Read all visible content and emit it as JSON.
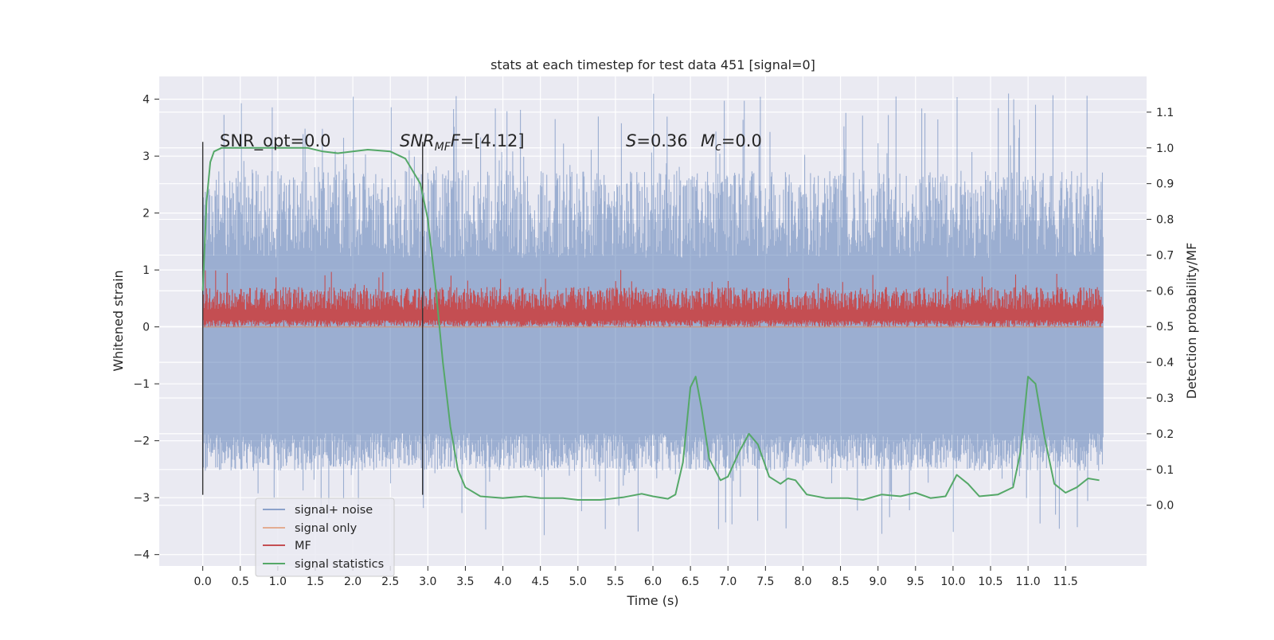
{
  "chart_data": {
    "type": "line",
    "title": "stats at each timestep for test data 451 [signal=0]",
    "xlabel": "Time (s)",
    "ylabel": "Whitened strain",
    "ylabel_right": "Detection probability/MF",
    "xlim": [
      -0.58,
      12.58
    ],
    "ylim": [
      -4.2,
      4.4
    ],
    "ylim_right": [
      -0.17,
      1.2
    ],
    "x_ticks": [
      0.0,
      0.5,
      1.0,
      1.5,
      2.0,
      2.5,
      3.0,
      3.5,
      4.0,
      4.5,
      5.0,
      5.5,
      6.0,
      6.5,
      7.0,
      7.5,
      8.0,
      8.5,
      9.0,
      9.5,
      10.0,
      10.5,
      11.0,
      11.5
    ],
    "x_tick_labels": [
      "0.0",
      "0.5",
      "1.0",
      "1.5",
      "2.0",
      "2.5",
      "3.0",
      "3.5",
      "4.0",
      "4.5",
      "5.0",
      "5.5",
      "6.0",
      "6.5",
      "7.0",
      "7.5",
      "8.0",
      "8.5",
      "9.0",
      "9.5",
      "10.0",
      "10.5",
      "11.0",
      "11.5"
    ],
    "y_ticks": [
      -4,
      -3,
      -2,
      -1,
      0,
      1,
      2,
      3,
      4
    ],
    "y_tick_labels": [
      "−4",
      "−3",
      "−2",
      "−1",
      "0",
      "1",
      "2",
      "3",
      "4"
    ],
    "y_right_ticks": [
      0.0,
      0.1,
      0.2,
      0.3,
      0.4,
      0.5,
      0.6,
      0.7,
      0.8,
      0.9,
      1.0,
      1.1
    ],
    "y_right_tick_labels": [
      "0.0",
      "0.1",
      "0.2",
      "0.3",
      "0.4",
      "0.5",
      "0.6",
      "0.7",
      "0.8",
      "0.9",
      "1.0",
      "1.1"
    ],
    "grid": true,
    "legend_position": "lower-left",
    "annotations": {
      "snr_opt": "SNR_opt=0.0",
      "snr_mf_main": "SNR",
      "snr_mf_sub": "MF",
      "snr_mf_value": "=[4.12]",
      "s_main": "S",
      "s_value": "=0.36",
      "mc_main": "M",
      "mc_sub": "c",
      "mc_value": "=0.0"
    },
    "vertical_markers": [
      0.0,
      2.93
    ],
    "series": [
      {
        "name": "signal+ noise",
        "color": "#4c72b0",
        "axis": "left",
        "envelope": {
          "x_range": [
            0.0,
            12.0
          ],
          "typical_range": [
            -2.2,
            2.2
          ],
          "extreme_range": [
            -3.7,
            4.1
          ]
        }
      },
      {
        "name": "signal only",
        "color": "#dd8452",
        "axis": "left",
        "values": [
          [
            0.0,
            0.0
          ],
          [
            12.0,
            0.0
          ]
        ]
      },
      {
        "name": "MF",
        "color": "#c44e52",
        "axis": "left",
        "envelope": {
          "x_range": [
            0.0,
            12.0
          ],
          "typical_range": [
            0.0,
            0.7
          ],
          "extreme_range": [
            0.0,
            1.0
          ]
        }
      },
      {
        "name": "signal statistics",
        "color": "#55a868",
        "axis": "right",
        "points": [
          [
            0.0,
            0.6
          ],
          [
            0.05,
            0.85
          ],
          [
            0.1,
            0.96
          ],
          [
            0.15,
            0.99
          ],
          [
            0.25,
            1.0
          ],
          [
            0.5,
            1.0
          ],
          [
            1.0,
            1.0
          ],
          [
            1.4,
            1.0
          ],
          [
            1.6,
            0.99
          ],
          [
            1.8,
            0.985
          ],
          [
            2.0,
            0.99
          ],
          [
            2.2,
            0.995
          ],
          [
            2.5,
            0.99
          ],
          [
            2.7,
            0.97
          ],
          [
            2.9,
            0.9
          ],
          [
            3.0,
            0.8
          ],
          [
            3.1,
            0.62
          ],
          [
            3.2,
            0.4
          ],
          [
            3.3,
            0.22
          ],
          [
            3.4,
            0.1
          ],
          [
            3.5,
            0.05
          ],
          [
            3.7,
            0.025
          ],
          [
            4.0,
            0.02
          ],
          [
            4.3,
            0.025
          ],
          [
            4.5,
            0.02
          ],
          [
            4.8,
            0.02
          ],
          [
            5.0,
            0.015
          ],
          [
            5.3,
            0.015
          ],
          [
            5.6,
            0.022
          ],
          [
            5.85,
            0.032
          ],
          [
            6.0,
            0.025
          ],
          [
            6.2,
            0.018
          ],
          [
            6.3,
            0.03
          ],
          [
            6.4,
            0.12
          ],
          [
            6.5,
            0.33
          ],
          [
            6.57,
            0.36
          ],
          [
            6.65,
            0.27
          ],
          [
            6.75,
            0.13
          ],
          [
            6.9,
            0.07
          ],
          [
            7.0,
            0.08
          ],
          [
            7.15,
            0.15
          ],
          [
            7.28,
            0.2
          ],
          [
            7.4,
            0.17
          ],
          [
            7.55,
            0.08
          ],
          [
            7.7,
            0.06
          ],
          [
            7.8,
            0.075
          ],
          [
            7.9,
            0.07
          ],
          [
            8.05,
            0.03
          ],
          [
            8.3,
            0.02
          ],
          [
            8.6,
            0.02
          ],
          [
            8.8,
            0.015
          ],
          [
            9.05,
            0.03
          ],
          [
            9.3,
            0.025
          ],
          [
            9.5,
            0.035
          ],
          [
            9.7,
            0.02
          ],
          [
            9.9,
            0.025
          ],
          [
            10.05,
            0.085
          ],
          [
            10.2,
            0.06
          ],
          [
            10.35,
            0.025
          ],
          [
            10.6,
            0.03
          ],
          [
            10.8,
            0.05
          ],
          [
            10.9,
            0.15
          ],
          [
            11.0,
            0.36
          ],
          [
            11.1,
            0.34
          ],
          [
            11.22,
            0.19
          ],
          [
            11.35,
            0.06
          ],
          [
            11.5,
            0.035
          ],
          [
            11.65,
            0.05
          ],
          [
            11.8,
            0.075
          ],
          [
            11.95,
            0.07
          ]
        ]
      }
    ]
  }
}
